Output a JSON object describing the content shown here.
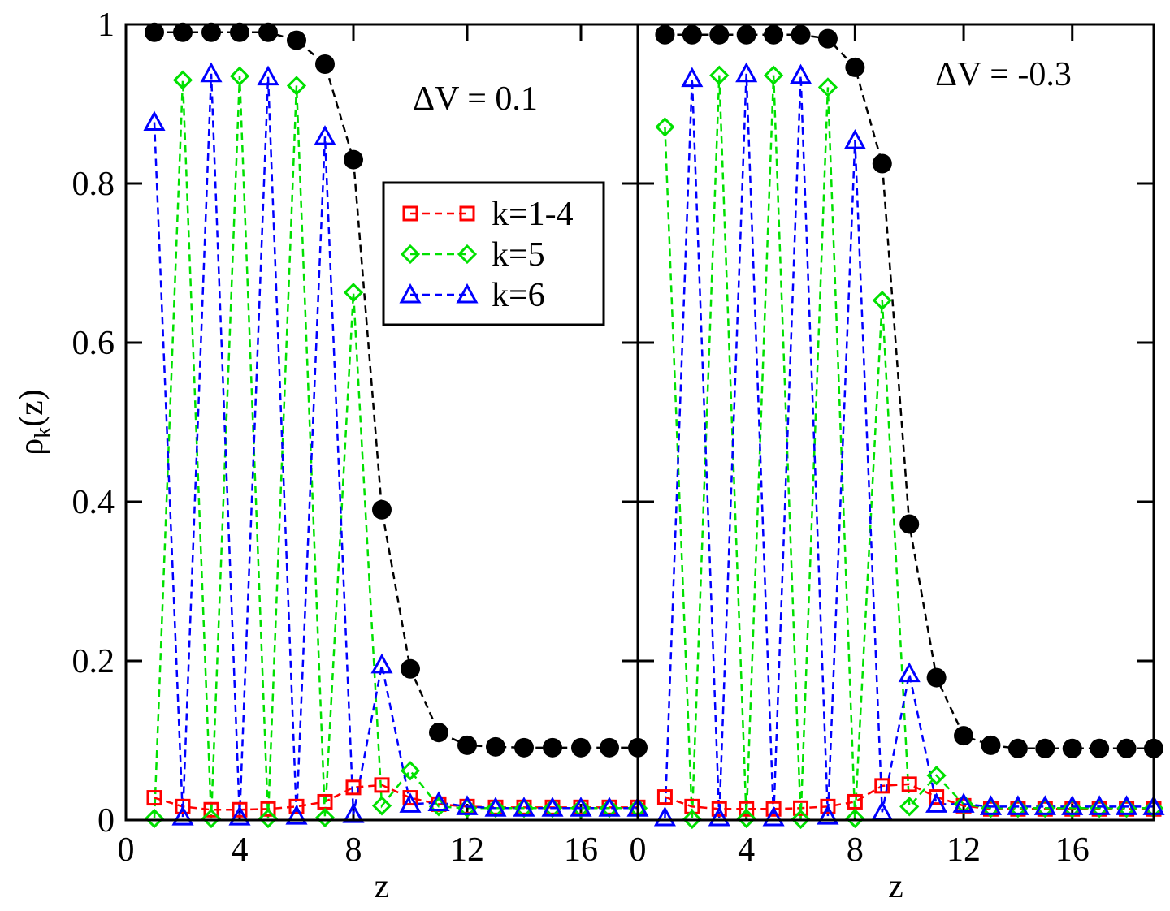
{
  "chart_data": [
    {
      "type": "line",
      "annotation": "ΔV = 0.1",
      "xlabel": "z",
      "ylabel": [
        "ρ",
        "k",
        "(z)"
      ],
      "xlim": [
        0,
        18
      ],
      "ylim": [
        0,
        1
      ],
      "xticks": [
        0,
        4,
        8,
        12,
        16
      ],
      "yticks": [
        0,
        0.2,
        0.4,
        0.6,
        0.8,
        1
      ],
      "ytick_labels": true,
      "legend": "upper center",
      "x": [
        1,
        2,
        3,
        4,
        5,
        6,
        7,
        8,
        9,
        10,
        11,
        12,
        13,
        14,
        15,
        16,
        17,
        18
      ],
      "series": [
        {
          "color": "#000000",
          "marker": "circle",
          "values": [
            0.99,
            0.99,
            0.99,
            0.99,
            0.99,
            0.98,
            0.95,
            0.83,
            0.39,
            0.19,
            0.11,
            0.094,
            0.092,
            0.091,
            0.091,
            0.091,
            0.091,
            0.091
          ]
        },
        {
          "name": "k=1-4",
          "color": "#ff0000",
          "marker": "square",
          "values": [
            0.028,
            0.017,
            0.013,
            0.013,
            0.014,
            0.017,
            0.023,
            0.041,
            0.044,
            0.028,
            0.02,
            0.017,
            0.016,
            0.016,
            0.016,
            0.016,
            0.016,
            0.016
          ]
        },
        {
          "name": "k=5",
          "color": "#00e000",
          "marker": "diamond",
          "values": [
            0.002,
            0.93,
            0.002,
            0.935,
            0.002,
            0.923,
            0.003,
            0.663,
            0.018,
            0.062,
            0.017,
            0.015,
            0.015,
            0.015,
            0.015,
            0.015,
            0.015,
            0.015
          ]
        },
        {
          "name": "k=6",
          "color": "#0000ff",
          "marker": "triangle",
          "values": [
            0.877,
            0.004,
            0.938,
            0.004,
            0.934,
            0.005,
            0.859,
            0.007,
            0.195,
            0.02,
            0.022,
            0.017,
            0.015,
            0.015,
            0.015,
            0.015,
            0.015,
            0.015
          ]
        }
      ]
    },
    {
      "type": "line",
      "annotation": "ΔV = -0.3",
      "xlabel": "z",
      "xlim": [
        0,
        19
      ],
      "ylim": [
        0,
        1
      ],
      "xticks": [
        0,
        4,
        8,
        12,
        16
      ],
      "yticks": [
        0,
        0.2,
        0.4,
        0.6,
        0.8,
        1
      ],
      "ytick_labels": false,
      "x": [
        1,
        2,
        3,
        4,
        5,
        6,
        7,
        8,
        9,
        10,
        11,
        12,
        13,
        14,
        15,
        16,
        17,
        18,
        19
      ],
      "series": [
        {
          "color": "#000000",
          "marker": "circle",
          "values": [
            0.987,
            0.987,
            0.987,
            0.987,
            0.987,
            0.987,
            0.982,
            0.946,
            0.825,
            0.372,
            0.179,
            0.106,
            0.094,
            0.09,
            0.09,
            0.09,
            0.09,
            0.09,
            0.09
          ]
        },
        {
          "color": "#ff0000",
          "marker": "square",
          "values": [
            0.029,
            0.017,
            0.014,
            0.014,
            0.014,
            0.015,
            0.017,
            0.023,
            0.043,
            0.045,
            0.029,
            0.018,
            0.014,
            0.014,
            0.014,
            0.014,
            0.014,
            0.014,
            0.014
          ]
        },
        {
          "color": "#00e000",
          "marker": "diamond",
          "values": [
            0.871,
            0.001,
            0.936,
            0.002,
            0.936,
            0.001,
            0.921,
            0.002,
            0.653,
            0.017,
            0.056,
            0.02,
            0.015,
            0.015,
            0.015,
            0.015,
            0.015,
            0.015,
            0.015
          ]
        },
        {
          "color": "#0000ff",
          "marker": "triangle",
          "values": [
            0.003,
            0.932,
            0.003,
            0.938,
            0.003,
            0.936,
            0.005,
            0.854,
            0.01,
            0.184,
            0.02,
            0.02,
            0.017,
            0.017,
            0.017,
            0.017,
            0.017,
            0.017,
            0.017
          ]
        }
      ]
    }
  ]
}
